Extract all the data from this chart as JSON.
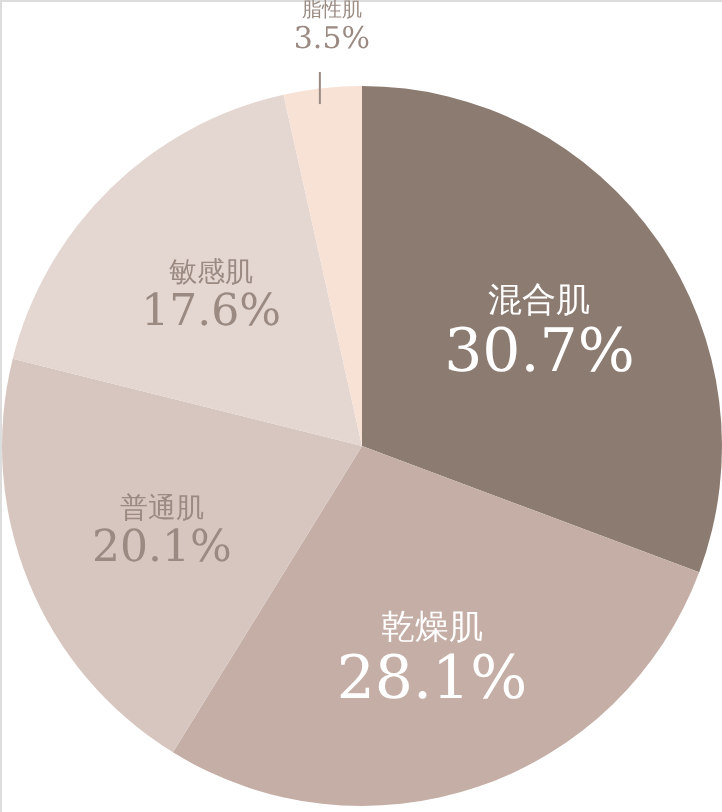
{
  "chart_data": {
    "type": "pie",
    "categories": [
      "混合肌",
      "乾燥肌",
      "普通肌",
      "敏感肌",
      "脂性肌"
    ],
    "values": [
      30.7,
      28.1,
      20.1,
      17.6,
      3.5
    ],
    "value_labels": [
      "30.7%",
      "28.1%",
      "20.1%",
      "17.6%",
      "3.5%"
    ],
    "colors": [
      "#8c7b71",
      "#c4aea6",
      "#d7c6bf",
      "#e4d6d1",
      "#f8e2d6"
    ]
  }
}
